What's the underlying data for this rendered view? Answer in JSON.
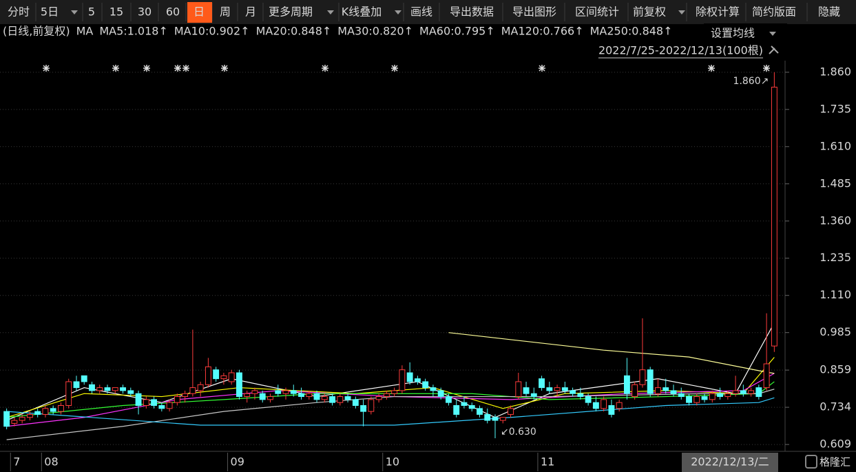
{
  "toolbar": {
    "items": [
      "分时",
      "5日",
      "5",
      "15",
      "30",
      "60",
      "日",
      "周",
      "月",
      "更多周期",
      "K线叠加",
      "画线",
      "导出数据",
      "导出图形",
      "区间统计",
      "前复权",
      "除权计算",
      "简约版面",
      "隐藏"
    ]
  },
  "header": {
    "mode": "(日线,前复权)",
    "ma": "MA",
    "settings": "设置均线",
    "range": "2022/7/25-2022/12/13(100根)"
  },
  "footer": {
    "cursor_date": "2022/12/13/二",
    "logo": "格隆汇"
  },
  "chart_data": {
    "type": "candlestick",
    "categories": [
      null,
      "7",
      null,
      null,
      null,
      "08",
      null,
      null,
      null,
      null,
      null,
      null,
      null,
      null,
      null,
      null,
      null,
      null,
      null,
      null,
      null,
      null,
      null,
      null,
      null,
      null,
      null,
      null,
      null,
      "09",
      null,
      null,
      null,
      null,
      null,
      null,
      null,
      null,
      null,
      null,
      null,
      null,
      null,
      null,
      null,
      null,
      null,
      null,
      null,
      "10",
      null,
      null,
      null,
      null,
      null,
      null,
      null,
      null,
      null,
      null,
      null,
      null,
      null,
      null,
      null,
      null,
      null,
      null,
      null,
      "11",
      null,
      null,
      null,
      null,
      null,
      null,
      null,
      null,
      null,
      null,
      null,
      null,
      null,
      null,
      null,
      null,
      null,
      null,
      null,
      null,
      null,
      null,
      null,
      null,
      null,
      null,
      null,
      null,
      null,
      null
    ],
    "open": [
      0.72,
      0.68,
      0.69,
      0.7,
      0.72,
      0.71,
      0.73,
      0.72,
      0.74,
      0.82,
      0.84,
      0.81,
      0.79,
      0.8,
      0.79,
      0.8,
      0.79,
      0.78,
      0.74,
      0.76,
      0.74,
      0.73,
      0.75,
      0.77,
      0.78,
      0.79,
      0.81,
      0.86,
      0.83,
      0.82,
      0.85,
      0.77,
      0.78,
      0.78,
      0.76,
      0.79,
      0.78,
      0.79,
      0.78,
      0.77,
      0.78,
      0.76,
      0.77,
      0.75,
      0.77,
      0.76,
      0.74,
      0.72,
      0.76,
      0.77,
      0.78,
      0.79,
      0.85,
      0.83,
      0.82,
      0.8,
      0.79,
      0.77,
      0.74,
      0.75,
      0.74,
      0.73,
      0.71,
      0.7,
      0.69,
      0.71,
      0.77,
      0.8,
      0.78,
      0.83,
      0.8,
      0.79,
      0.8,
      0.79,
      0.78,
      0.77,
      0.75,
      0.73,
      0.74,
      0.73,
      0.84,
      0.77,
      0.81,
      0.86,
      0.78,
      0.8,
      0.79,
      0.78,
      0.77,
      0.75,
      0.77,
      0.76,
      0.78,
      0.77,
      0.78,
      0.79,
      0.78,
      0.8,
      0.8,
      0.94
    ],
    "high": [
      0.73,
      0.7,
      0.71,
      0.72,
      0.73,
      0.74,
      0.74,
      0.75,
      0.83,
      0.84,
      0.84,
      0.82,
      0.81,
      0.81,
      0.8,
      0.81,
      0.8,
      0.79,
      0.77,
      0.77,
      0.75,
      0.76,
      0.78,
      0.79,
      0.995,
      0.82,
      0.9,
      0.87,
      0.85,
      0.86,
      0.86,
      0.79,
      0.8,
      0.79,
      0.78,
      0.81,
      0.8,
      0.81,
      0.8,
      0.79,
      0.79,
      0.78,
      0.78,
      0.78,
      0.78,
      0.77,
      0.76,
      0.77,
      0.78,
      0.79,
      0.8,
      0.875,
      0.885,
      0.84,
      0.83,
      0.81,
      0.8,
      0.78,
      0.76,
      0.77,
      0.75,
      0.74,
      0.73,
      0.71,
      0.7,
      0.74,
      0.85,
      0.82,
      0.8,
      0.84,
      0.82,
      0.81,
      0.82,
      0.8,
      0.8,
      0.78,
      0.77,
      0.77,
      0.76,
      0.76,
      0.9,
      0.82,
      1.033,
      0.87,
      0.83,
      0.83,
      0.81,
      0.8,
      0.78,
      0.78,
      0.78,
      0.79,
      0.8,
      0.79,
      0.84,
      0.81,
      0.8,
      0.81,
      1.05,
      1.86
    ],
    "low": [
      0.66,
      0.67,
      0.68,
      0.69,
      0.7,
      0.7,
      0.71,
      0.71,
      0.73,
      0.79,
      0.81,
      0.78,
      0.78,
      0.78,
      0.78,
      0.78,
      0.77,
      0.71,
      0.73,
      0.73,
      0.72,
      0.72,
      0.74,
      0.75,
      0.77,
      0.77,
      0.8,
      0.82,
      0.81,
      0.81,
      0.76,
      0.75,
      0.76,
      0.75,
      0.75,
      0.77,
      0.76,
      0.77,
      0.76,
      0.76,
      0.75,
      0.75,
      0.74,
      0.74,
      0.75,
      0.73,
      0.67,
      0.71,
      0.75,
      0.76,
      0.77,
      0.78,
      0.81,
      0.81,
      0.79,
      0.77,
      0.76,
      0.74,
      0.7,
      0.73,
      0.72,
      0.7,
      0.68,
      0.63,
      0.68,
      0.7,
      0.76,
      0.77,
      0.76,
      0.79,
      0.78,
      0.77,
      0.78,
      0.77,
      0.76,
      0.74,
      0.72,
      0.72,
      0.7,
      0.72,
      0.76,
      0.76,
      0.8,
      0.77,
      0.77,
      0.78,
      0.77,
      0.76,
      0.74,
      0.74,
      0.75,
      0.75,
      0.76,
      0.76,
      0.77,
      0.77,
      0.77,
      0.76,
      0.79,
      0.92
    ],
    "close": [
      0.67,
      0.69,
      0.7,
      0.71,
      0.71,
      0.73,
      0.72,
      0.74,
      0.82,
      0.8,
      0.82,
      0.79,
      0.8,
      0.79,
      0.8,
      0.79,
      0.78,
      0.74,
      0.76,
      0.74,
      0.73,
      0.75,
      0.77,
      0.78,
      0.8,
      0.81,
      0.87,
      0.83,
      0.84,
      0.85,
      0.77,
      0.78,
      0.79,
      0.76,
      0.77,
      0.78,
      0.79,
      0.78,
      0.77,
      0.78,
      0.76,
      0.77,
      0.75,
      0.77,
      0.76,
      0.74,
      0.72,
      0.76,
      0.77,
      0.78,
      0.79,
      0.86,
      0.82,
      0.82,
      0.8,
      0.79,
      0.77,
      0.75,
      0.71,
      0.74,
      0.73,
      0.71,
      0.69,
      0.69,
      0.7,
      0.73,
      0.82,
      0.78,
      0.77,
      0.8,
      0.79,
      0.8,
      0.79,
      0.78,
      0.77,
      0.75,
      0.73,
      0.76,
      0.71,
      0.75,
      0.78,
      0.81,
      0.86,
      0.78,
      0.8,
      0.79,
      0.78,
      0.77,
      0.75,
      0.77,
      0.76,
      0.78,
      0.77,
      0.78,
      0.79,
      0.78,
      0.79,
      0.77,
      0.88,
      1.81
    ],
    "up_color": "#ff3c3c",
    "down_color": "#54fcfc",
    "series": [
      {
        "name": "MA5:1.018↑",
        "color": "#ffffff",
        "x": [
          0,
          10,
          20,
          29,
          40,
          53,
          63,
          70,
          84,
          94,
          99
        ],
        "values": [
          0.69,
          0.8,
          0.75,
          0.83,
          0.77,
          0.82,
          0.7,
          0.78,
          0.83,
          0.78,
          1.018
        ]
      },
      {
        "name": "MA10:0.902↑",
        "color": "#ffff00",
        "x": [
          0,
          10,
          20,
          30,
          45,
          55,
          64,
          72,
          85,
          95,
          99
        ],
        "values": [
          0.7,
          0.78,
          0.77,
          0.8,
          0.78,
          0.8,
          0.73,
          0.78,
          0.79,
          0.78,
          0.902
        ]
      },
      {
        "name": "MA20:0.848↑",
        "color": "#ff33ff",
        "x": [
          0,
          10,
          22,
          35,
          50,
          65,
          80,
          95,
          99
        ],
        "values": [
          0.67,
          0.7,
          0.76,
          0.79,
          0.77,
          0.76,
          0.78,
          0.79,
          0.848
        ]
      },
      {
        "name": "MA30:0.820↑",
        "color": "#33ff33",
        "x": [
          0,
          15,
          28,
          40,
          60,
          70,
          85,
          97,
          99
        ],
        "values": [
          0.7,
          0.74,
          0.76,
          0.78,
          0.78,
          0.76,
          0.77,
          0.78,
          0.82
        ]
      },
      {
        "name": "MA60:0.795↑",
        "color": "#c8c8c8",
        "x": [
          0,
          15,
          28,
          40,
          50,
          70,
          90,
          97,
          99
        ],
        "values": [
          0.625,
          0.67,
          0.72,
          0.75,
          0.77,
          0.77,
          0.78,
          0.78,
          0.795
        ]
      },
      {
        "name": "MA120:0.766↑",
        "color": "#33ccff",
        "x": [
          0,
          25,
          50,
          65,
          85,
          97,
          99
        ],
        "values": [
          0.72,
          0.674,
          0.674,
          0.7,
          0.74,
          0.75,
          0.766
        ]
      },
      {
        "name": "MA250:0.848↑",
        "color": "#ffff99",
        "x": [
          57,
          77,
          88,
          98,
          99
        ],
        "values": [
          0.985,
          0.926,
          0.903,
          0.852,
          0.848
        ]
      }
    ],
    "extremes": [
      {
        "value": 1.86,
        "label": "1.860↗"
      },
      {
        "value": 0.63,
        "label": "↙0.630"
      }
    ],
    "ylim": [
      0.586,
      1.899
    ],
    "yticks": [
      {
        "value": 0.609,
        "label": "0.609"
      },
      {
        "value": 0.734,
        "label": "0.734"
      },
      {
        "value": 0.859,
        "label": "0.859"
      },
      {
        "value": 0.985,
        "label": "0.985"
      },
      {
        "value": 1.11,
        "label": "1.110"
      },
      {
        "value": 1.235,
        "label": "1.235"
      },
      {
        "value": 1.36,
        "label": "1.360"
      },
      {
        "value": 1.485,
        "label": "1.485"
      },
      {
        "value": 1.61,
        "label": "1.610"
      },
      {
        "value": 1.735,
        "label": "1.735"
      },
      {
        "value": 1.86,
        "label": "1.860"
      }
    ],
    "grid": true
  }
}
